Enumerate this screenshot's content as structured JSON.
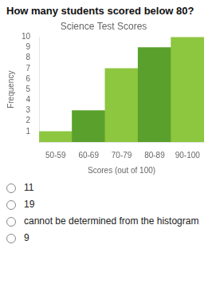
{
  "chart_data": {
    "type": "bar",
    "title": "Science Test Scores",
    "subtitle": "How many students scored below 80?",
    "xlabel": "Scores (out of 100)",
    "ylabel": "Frequency",
    "categories": [
      "50-59",
      "60-69",
      "70-79",
      "80-89",
      "90-100"
    ],
    "values": [
      1,
      3,
      7,
      9,
      10
    ],
    "colors": [
      "#8dc63f",
      "#5aa02c",
      "#8dc63f",
      "#5aa02c",
      "#8dc63f"
    ],
    "ylim": [
      0,
      10
    ],
    "yticks": [
      1,
      2,
      3,
      4,
      5,
      6,
      7,
      8,
      9,
      10
    ],
    "grid": false,
    "annotations": [
      "11",
      "19",
      "cannot be determined from the histogram",
      "9"
    ]
  }
}
